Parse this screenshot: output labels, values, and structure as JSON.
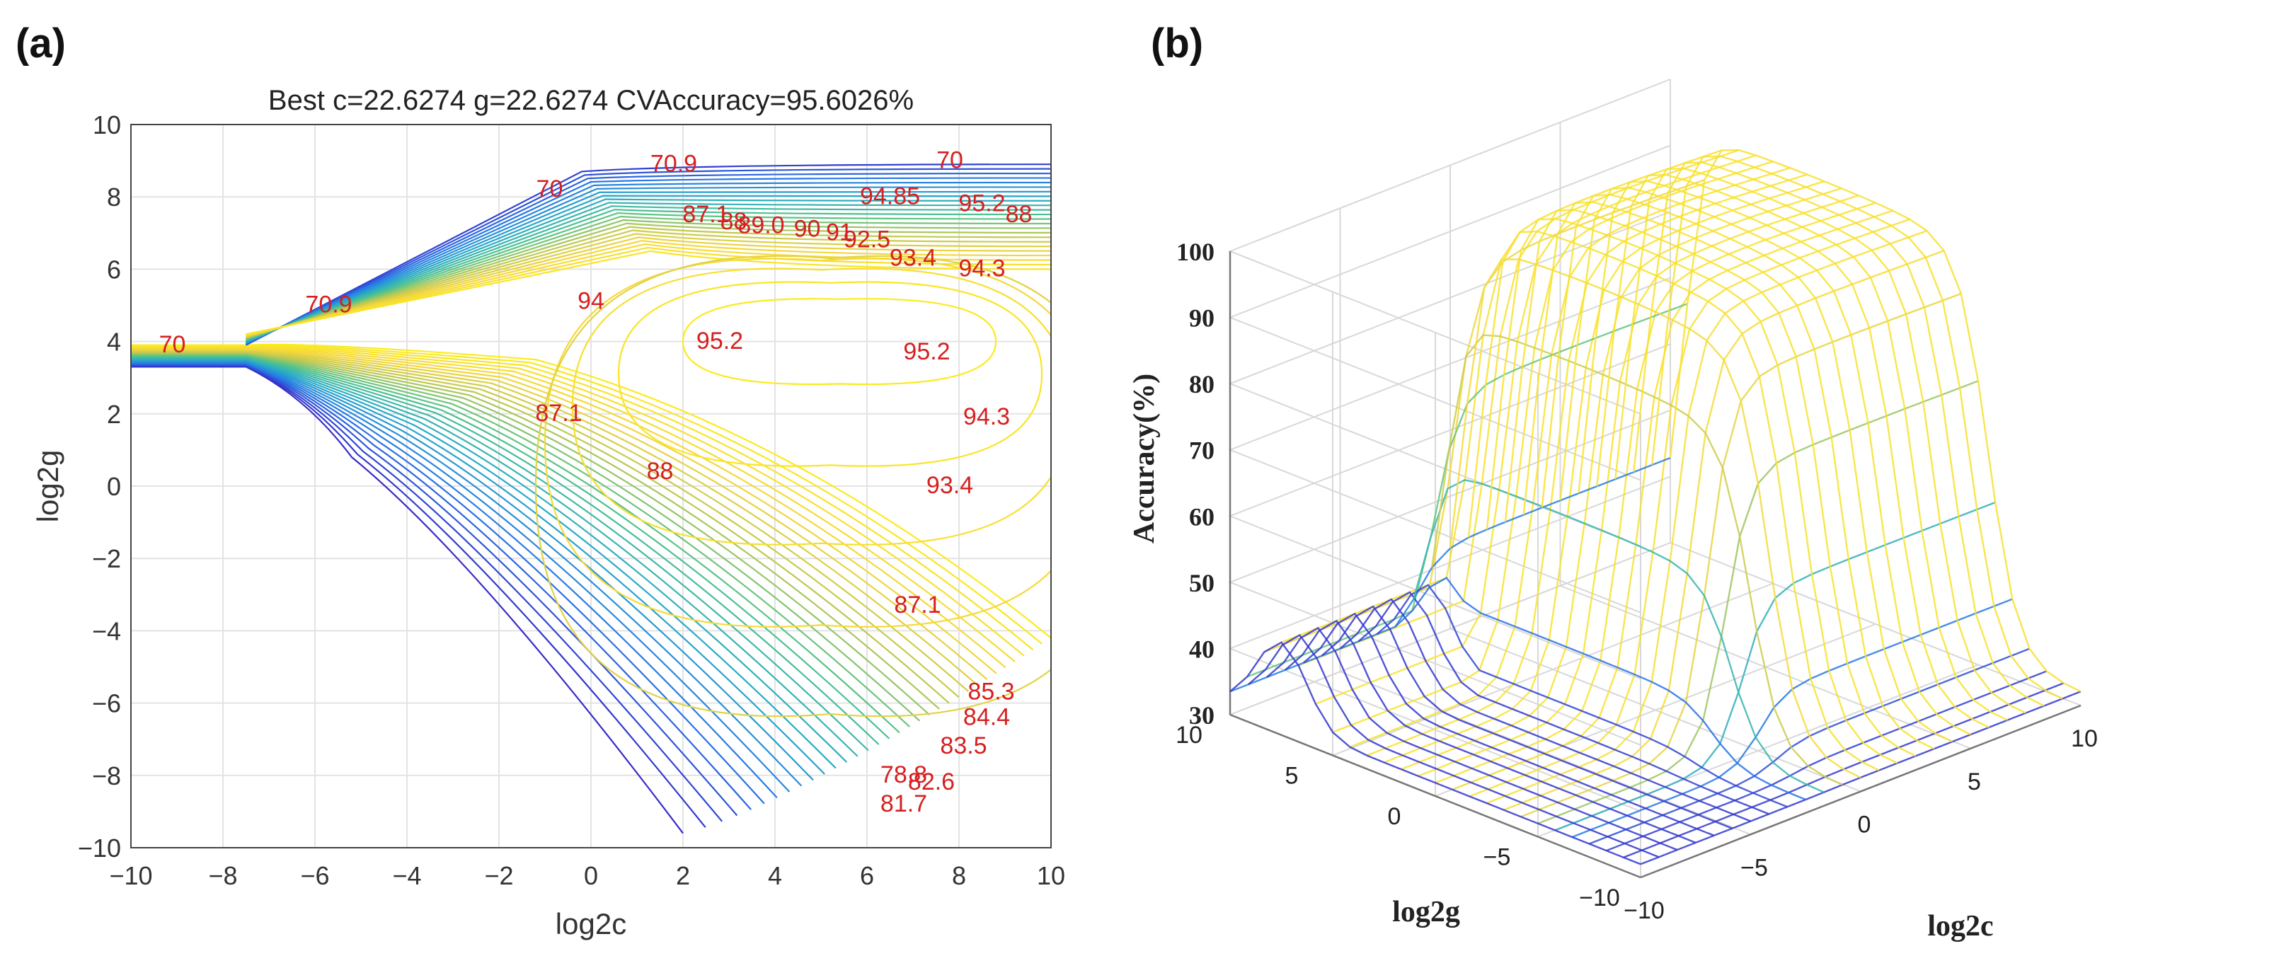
{
  "panels": [
    {
      "letter": "(a)"
    },
    {
      "letter": "(b)"
    }
  ],
  "chart_data": [
    {
      "type": "contour",
      "title": "Best c=22.6274 g=22.6274 CVAccuracy=95.6026%",
      "xlabel": "log2c",
      "ylabel": "log2g",
      "xlim": [
        -10,
        10
      ],
      "ylim": [
        -10,
        10
      ],
      "xticks": [
        "−10",
        "−8",
        "−6",
        "−4",
        "−2",
        "0",
        "2",
        "4",
        "6",
        "8",
        "10"
      ],
      "yticks": [
        "10",
        "8",
        "6",
        "4",
        "2",
        "0",
        "−2",
        "−4",
        "−6",
        "−8",
        "−10"
      ],
      "grid": true,
      "contour_labels": [
        {
          "x": -9.1,
          "y": 3.7,
          "text": "70"
        },
        {
          "x": -0.9,
          "y": 8.0,
          "text": "70"
        },
        {
          "x": 7.8,
          "y": 8.8,
          "text": "70"
        },
        {
          "x": 1.8,
          "y": 8.7,
          "text": "70.9"
        },
        {
          "x": -5.7,
          "y": 4.8,
          "text": "70.9"
        },
        {
          "x": 2.5,
          "y": 7.3,
          "text": "87.1"
        },
        {
          "x": 3.1,
          "y": 7.1,
          "text": "88"
        },
        {
          "x": 3.7,
          "y": 7.0,
          "text": "89.0"
        },
        {
          "x": 4.7,
          "y": 6.9,
          "text": "90"
        },
        {
          "x": 5.4,
          "y": 6.8,
          "text": "91"
        },
        {
          "x": 6.0,
          "y": 6.6,
          "text": "92.5"
        },
        {
          "x": 7.0,
          "y": 6.1,
          "text": "93.4"
        },
        {
          "x": 8.5,
          "y": 5.8,
          "text": "94.3"
        },
        {
          "x": 6.5,
          "y": 7.8,
          "text": "94.85"
        },
        {
          "x": 8.5,
          "y": 7.6,
          "text": "95.2"
        },
        {
          "x": 9.3,
          "y": 7.3,
          "text": "88"
        },
        {
          "x": 0.0,
          "y": 4.9,
          "text": "94"
        },
        {
          "x": 2.8,
          "y": 3.8,
          "text": "95.2"
        },
        {
          "x": 7.3,
          "y": 3.5,
          "text": "95.2"
        },
        {
          "x": 8.6,
          "y": 1.7,
          "text": "94.3"
        },
        {
          "x": 7.8,
          "y": -0.2,
          "text": "93.4"
        },
        {
          "x": 7.1,
          "y": -3.5,
          "text": "87.1"
        },
        {
          "x": -0.7,
          "y": 1.8,
          "text": "87.1"
        },
        {
          "x": 1.5,
          "y": 0.2,
          "text": "88"
        },
        {
          "x": 8.7,
          "y": -5.9,
          "text": "85.3"
        },
        {
          "x": 8.6,
          "y": -6.6,
          "text": "84.4"
        },
        {
          "x": 8.1,
          "y": -7.4,
          "text": "83.5"
        },
        {
          "x": 7.4,
          "y": -8.4,
          "text": "82.6"
        },
        {
          "x": 6.8,
          "y": -9.0,
          "text": "81.7"
        },
        {
          "x": 6.8,
          "y": -8.2,
          "text": "78.8"
        }
      ]
    },
    {
      "type": "surface",
      "zlabel": "Accuracy(%)",
      "xlabel": "log2c",
      "ylabel": "log2g",
      "xlim": [
        -10,
        10
      ],
      "ylim": [
        -10,
        10
      ],
      "zlim": [
        30,
        100
      ],
      "zticks": [
        "30",
        "40",
        "50",
        "60",
        "70",
        "80",
        "90",
        "100"
      ],
      "xticks": [
        "−10",
        "−5",
        "0",
        "5",
        "10"
      ],
      "yticks": [
        "−10",
        "−5",
        "0",
        "5",
        "10"
      ],
      "grid": true
    }
  ]
}
